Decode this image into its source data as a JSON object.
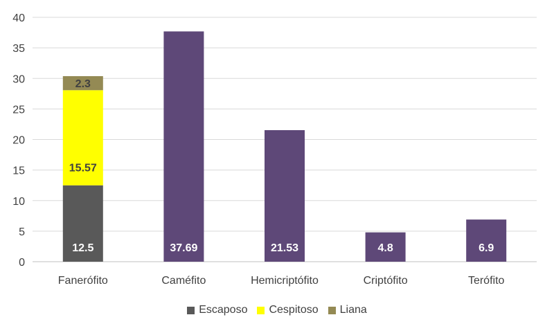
{
  "chart_data": {
    "type": "bar",
    "stacked": true,
    "categories": [
      "Faneróﬁto",
      "Caméﬁto",
      "Hemicriptóﬁto",
      "Criptóﬁto",
      "Teróﬁto"
    ],
    "series": [
      {
        "name": "Escaposo",
        "color": "#595959",
        "values": [
          12.5,
          null,
          null,
          null,
          null
        ],
        "labels": [
          "12.5",
          "",
          "",
          "",
          ""
        ]
      },
      {
        "name": "Cespitoso",
        "color": "#ffff00",
        "values": [
          15.57,
          null,
          null,
          null,
          null
        ],
        "labels": [
          "15.57",
          "",
          "",
          "",
          ""
        ]
      },
      {
        "name": "Liana",
        "color": "#948a54",
        "values": [
          2.3,
          null,
          null,
          null,
          null
        ],
        "labels": [
          "2.3",
          "",
          "",
          "",
          ""
        ]
      },
      {
        "name": "",
        "color": "#5e4878",
        "values": [
          null,
          37.69,
          21.53,
          4.8,
          6.9
        ],
        "labels": [
          "",
          "37.69",
          "21.53",
          "4.8",
          "6.9"
        ]
      }
    ],
    "legend": [
      "Escaposo",
      "Cespitoso",
      "Liana"
    ],
    "legend_position": "bottom",
    "ylim": [
      0,
      40
    ],
    "yticks": [
      0,
      5,
      10,
      15,
      20,
      25,
      30,
      35,
      40
    ],
    "grid": true,
    "title": "",
    "xlabel": "",
    "ylabel": ""
  }
}
